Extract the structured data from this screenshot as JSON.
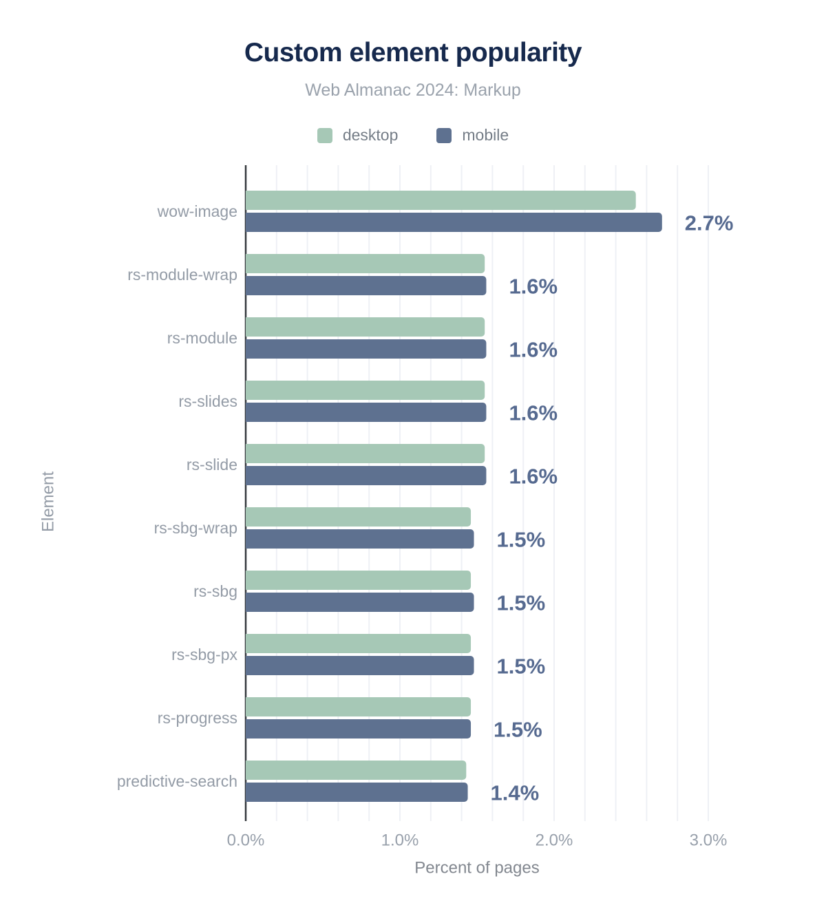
{
  "chart_data": {
    "type": "bar",
    "orientation": "horizontal",
    "title": "Custom element popularity",
    "subtitle": "Web Almanac 2024: Markup",
    "xlabel": "Percent of pages",
    "ylabel": "Element",
    "categories": [
      "wow-image",
      "rs-module-wrap",
      "rs-module",
      "rs-slides",
      "rs-slide",
      "rs-sbg-wrap",
      "rs-sbg",
      "rs-sbg-px",
      "rs-progress",
      "predictive-search"
    ],
    "series": [
      {
        "name": "desktop",
        "color": "#a6c8b6",
        "values": [
          2.53,
          1.55,
          1.55,
          1.55,
          1.55,
          1.46,
          1.46,
          1.46,
          1.46,
          1.43
        ]
      },
      {
        "name": "mobile",
        "color": "#5e7190",
        "values": [
          2.7,
          1.56,
          1.56,
          1.56,
          1.56,
          1.48,
          1.48,
          1.48,
          1.46,
          1.44
        ]
      }
    ],
    "value_labels": [
      "2.7%",
      "1.6%",
      "1.6%",
      "1.6%",
      "1.6%",
      "1.5%",
      "1.5%",
      "1.5%",
      "1.5%",
      "1.4%"
    ],
    "x_ticks": [
      "0.0%",
      "1.0%",
      "2.0%",
      "3.0%"
    ],
    "x_tick_values": [
      0,
      1,
      2,
      3
    ],
    "xlim": [
      0,
      3.0
    ],
    "grid_interval": 0.2,
    "grid": "vertical-only",
    "legend_position": "top-center",
    "value_label_source": "mobile"
  },
  "style": {
    "background": "#ffffff",
    "title_color": "#16294d",
    "subtitle_color": "#9aa2ac",
    "legend_text_color": "#757d87",
    "value_label_color": "#566a90",
    "category_label_color": "#939ba6",
    "tick_label_color": "#98a0ab",
    "axis_title_color": "#82878f",
    "grid_color": "#eef0f5",
    "axis_line_color": "#34383d"
  }
}
